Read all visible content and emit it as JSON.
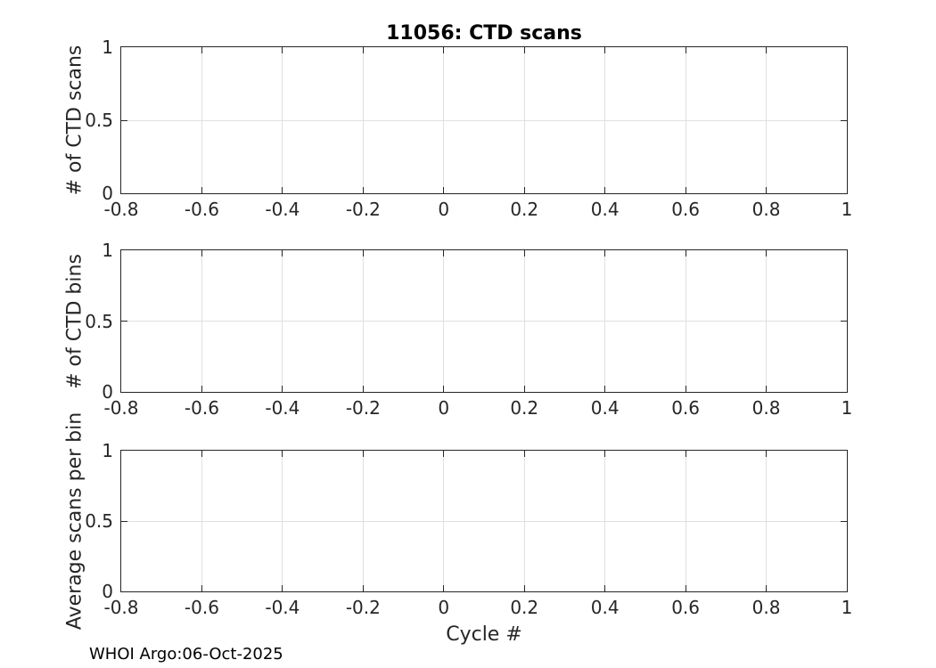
{
  "figure": {
    "title": "11056: CTD scans",
    "xlabel": "Cycle #",
    "footer": "WHOI Argo:06-Oct-2025"
  },
  "colors": {
    "axis": "#262626",
    "grid": "#e0e0e0",
    "tick_label": "#262626",
    "title": "#000000",
    "background": "#ffffff"
  },
  "chart_data": [
    {
      "type": "line",
      "title": "11056: CTD scans",
      "ylabel": "# of CTD scans",
      "xlabel": "",
      "xlim": [
        -0.8,
        1
      ],
      "ylim": [
        0,
        1
      ],
      "xticks": [
        -0.8,
        -0.6,
        -0.4,
        -0.2,
        0,
        0.2,
        0.4,
        0.6,
        0.8,
        1
      ],
      "yticks": [
        0,
        0.5,
        1
      ],
      "grid": true,
      "legend": null,
      "series": []
    },
    {
      "type": "line",
      "title": "",
      "ylabel": "# of CTD bins",
      "xlabel": "",
      "xlim": [
        -0.8,
        1
      ],
      "ylim": [
        0,
        1
      ],
      "xticks": [
        -0.8,
        -0.6,
        -0.4,
        -0.2,
        0,
        0.2,
        0.4,
        0.6,
        0.8,
        1
      ],
      "yticks": [
        0,
        0.5,
        1
      ],
      "grid": true,
      "legend": null,
      "series": []
    },
    {
      "type": "line",
      "title": "",
      "ylabel": "Average scans per bin",
      "xlabel": "Cycle #",
      "xlim": [
        -0.8,
        1
      ],
      "ylim": [
        0,
        1
      ],
      "xticks": [
        -0.8,
        -0.6,
        -0.4,
        -0.2,
        0,
        0.2,
        0.4,
        0.6,
        0.8,
        1
      ],
      "yticks": [
        0,
        0.5,
        1
      ],
      "grid": true,
      "legend": null,
      "series": []
    }
  ]
}
